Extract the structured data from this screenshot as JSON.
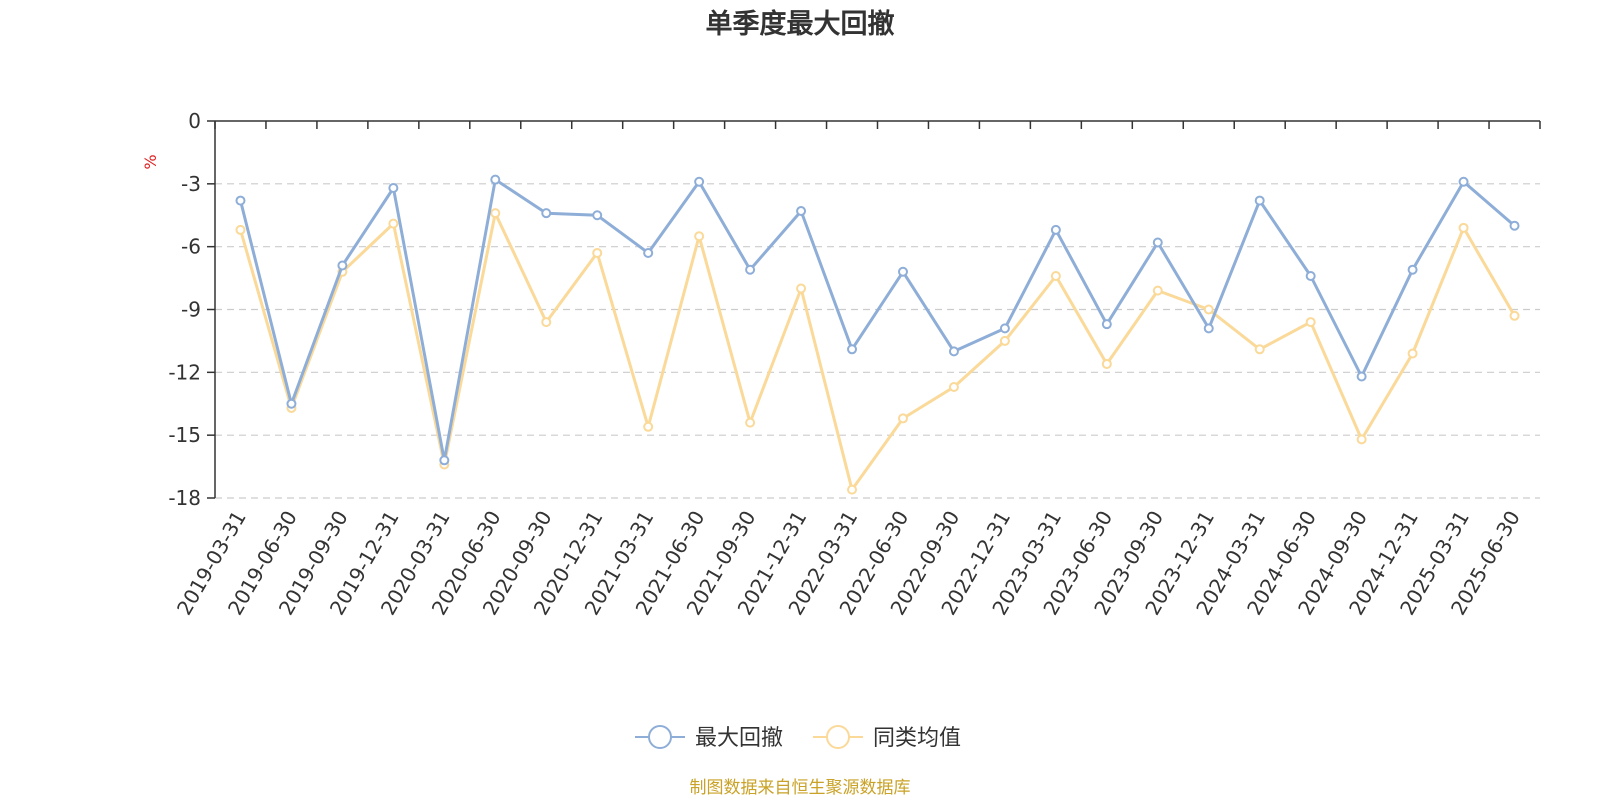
{
  "chart_data": {
    "type": "line",
    "title": "单季度最大回撤",
    "ylabel": "%",
    "ylim": [
      -18,
      0
    ],
    "yticks": [
      0,
      -3,
      -6,
      -9,
      -12,
      -15,
      -18
    ],
    "grid": true,
    "legend_position": "bottom",
    "categories": [
      "2019-03-31",
      "2019-06-30",
      "2019-09-30",
      "2019-12-31",
      "2020-03-31",
      "2020-06-30",
      "2020-09-30",
      "2020-12-31",
      "2021-03-31",
      "2021-06-30",
      "2021-09-30",
      "2021-12-31",
      "2022-03-31",
      "2022-06-30",
      "2022-09-30",
      "2022-12-31",
      "2023-03-31",
      "2023-06-30",
      "2023-09-30",
      "2023-12-31",
      "2024-03-31",
      "2024-06-30",
      "2024-09-30",
      "2024-12-31",
      "2025-03-31",
      "2025-06-30"
    ],
    "series": [
      {
        "name": "最大回撤",
        "color": "#8eaed8",
        "values": [
          -3.8,
          -13.5,
          -6.9,
          -3.2,
          -16.2,
          -2.8,
          -4.4,
          -4.5,
          -6.3,
          -2.9,
          -7.1,
          -4.3,
          -10.9,
          -7.2,
          -11.0,
          -9.9,
          -5.2,
          -9.7,
          -5.8,
          -9.9,
          -3.8,
          -7.4,
          -12.2,
          -7.1,
          -2.9,
          -5.0
        ]
      },
      {
        "name": "同类均值",
        "color": "#fad999",
        "values": [
          -5.2,
          -13.7,
          -7.2,
          -4.9,
          -16.4,
          -4.4,
          -9.6,
          -6.3,
          -14.6,
          -5.5,
          -14.4,
          -8.0,
          -17.6,
          -14.2,
          -12.7,
          -10.5,
          -7.4,
          -11.6,
          -8.1,
          -9.0,
          -10.9,
          -9.6,
          -15.2,
          -11.1,
          -5.1,
          -9.3
        ]
      }
    ],
    "footer": "制图数据来自恒生聚源数据库",
    "footer_color": "#c9a227",
    "unit_color": "#e02020",
    "axis_color": "#333333",
    "grid_color": "#cccccc"
  }
}
